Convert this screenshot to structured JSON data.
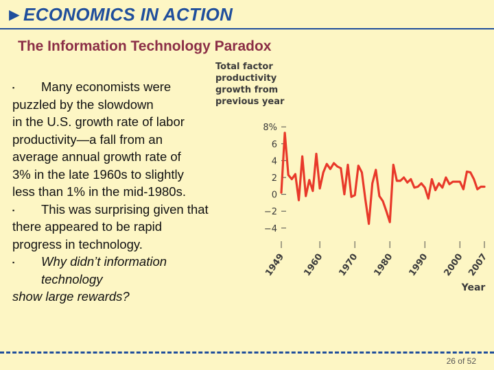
{
  "header": {
    "arrow": "►",
    "title": "ECONOMICS IN ACTION"
  },
  "subtitle": "The Information Technology Paradox",
  "body": {
    "bullet_glyph": "▪",
    "p1_first": "Many economists were",
    "p1_lines": [
      "puzzled by the slowdown",
      "in the U.S. growth rate of labor",
      "productivity—a fall from an",
      "average annual growth rate of",
      "3% in the late 1960s to slightly",
      "less than 1% in the mid-1980s."
    ],
    "p2_first": "This was surprising given that",
    "p2_lines": [
      "there appeared to be rapid",
      "progress in technology."
    ],
    "p3_first": "Why didn’t information",
    "p3_second": "technology",
    "p3_last": "show large rewards?"
  },
  "chart_data": {
    "type": "line",
    "title_lines": [
      "Total factor",
      "productivity",
      "growth from",
      "previous year"
    ],
    "xlabel": "Year",
    "x_ticks": [
      "1949",
      "1960",
      "1970",
      "1980",
      "1990",
      "2000",
      "2007"
    ],
    "y_ticks": [
      "8%",
      "6",
      "4",
      "2",
      "0",
      "−2",
      "−4"
    ],
    "ylim": [
      -4.5,
      8.5
    ],
    "xlim": [
      1949,
      2007
    ],
    "line_color": "#e8392a",
    "series": [
      {
        "x": [
          1949,
          1950,
          1951,
          1952,
          1953,
          1954,
          1955,
          1956,
          1957,
          1958,
          1959,
          1960,
          1961,
          1962,
          1963,
          1964,
          1965,
          1966,
          1967,
          1968,
          1969,
          1970,
          1971,
          1972,
          1973,
          1974,
          1975,
          1976,
          1977,
          1978,
          1979,
          1980,
          1981,
          1982,
          1983,
          1984,
          1985,
          1986,
          1987,
          1988,
          1989,
          1990,
          1991,
          1992,
          1993,
          1994,
          1995,
          1996,
          1997,
          1998,
          1999,
          2000,
          2001,
          2002,
          2003,
          2004,
          2005,
          2006,
          2007
        ],
        "y": [
          0.2,
          7.3,
          2.3,
          1.8,
          2.4,
          -0.7,
          4.5,
          -0.2,
          1.7,
          0.4,
          4.8,
          0.7,
          2.6,
          3.6,
          3.0,
          3.7,
          3.3,
          3.1,
          0.0,
          3.5,
          -0.3,
          -0.1,
          3.4,
          2.6,
          -0.6,
          -3.5,
          1.3,
          2.9,
          -0.2,
          -0.8,
          -2.0,
          -3.3,
          3.5,
          1.6,
          1.6,
          2.0,
          1.4,
          1.8,
          0.8,
          0.9,
          1.3,
          0.8,
          -0.5,
          1.8,
          0.5,
          1.3,
          0.8,
          2.0,
          1.2,
          1.5,
          1.5,
          1.5,
          0.6,
          2.7,
          2.6,
          1.8,
          0.6,
          0.9,
          0.9
        ]
      }
    ]
  },
  "footer": {
    "page": "26 of 52"
  }
}
